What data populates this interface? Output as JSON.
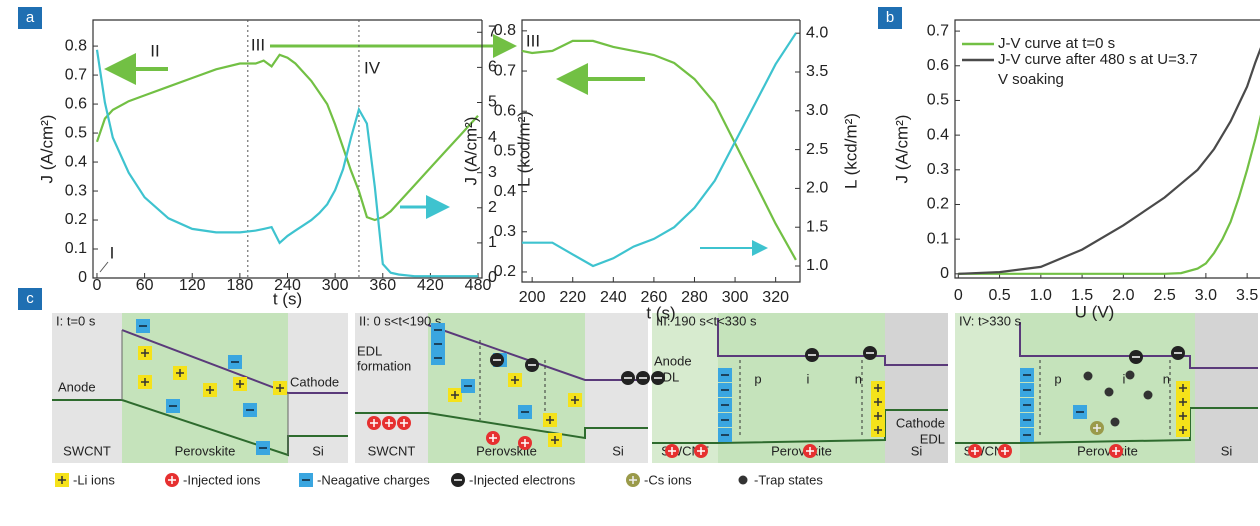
{
  "panel_labels": [
    "a",
    "b",
    "c"
  ],
  "chart_data": [
    {
      "type": "line",
      "xlabel": "t (s)",
      "ylabel": "J (A/cm²)",
      "y2label": "L (kcd/m²)",
      "x": [
        0,
        10,
        20,
        40,
        60,
        90,
        120,
        150,
        180,
        200,
        210,
        220,
        230,
        240,
        250,
        260,
        270,
        280,
        290,
        300,
        310,
        320,
        330,
        340,
        350,
        360,
        370,
        380,
        400,
        420,
        440,
        460,
        480
      ],
      "xlim": [
        -5,
        485
      ],
      "xticks": [
        0,
        60,
        120,
        180,
        240,
        300,
        360,
        420,
        480
      ],
      "ylim": [
        0,
        0.89
      ],
      "yticks": [
        0,
        0.1,
        0.2,
        0.3,
        0.4,
        0.5,
        0.6,
        0.7,
        0.8
      ],
      "y2lim": [
        0,
        7.35
      ],
      "y2ticks": [
        0,
        1,
        2,
        3,
        4,
        5,
        6,
        7
      ],
      "vlines": [
        190,
        330
      ],
      "annotations": [
        "I",
        "II",
        "III",
        "IV"
      ],
      "series": [
        {
          "color": "#72c044",
          "values": [
            0.47,
            0.55,
            0.58,
            0.61,
            0.63,
            0.66,
            0.69,
            0.72,
            0.74,
            0.74,
            0.75,
            0.73,
            0.77,
            0.76,
            0.74,
            0.71,
            0.68,
            0.64,
            0.6,
            0.53,
            0.45,
            0.37,
            0.3,
            0.21,
            0.2,
            0.21,
            0.23,
            0.26,
            0.32,
            0.38,
            0.44,
            0.5,
            0.56
          ]
        },
        {
          "color": "#3ec3cf",
          "axis": "y2",
          "values": [
            6.5,
            5.0,
            4.0,
            3.0,
            2.3,
            1.7,
            1.4,
            1.3,
            1.3,
            1.35,
            1.4,
            1.45,
            1.0,
            1.2,
            1.35,
            1.5,
            1.65,
            1.85,
            2.1,
            2.5,
            3.1,
            4.0,
            4.8,
            4.4,
            2.6,
            0.4,
            0.15,
            0.1,
            0.05,
            0.05,
            0.05,
            0.05,
            0.05
          ]
        }
      ]
    },
    {
      "type": "line",
      "xlabel": "t (s)",
      "ylabel": "J (A/cm²)",
      "y2label": "L (kcd/m²)",
      "x": [
        195,
        200,
        210,
        220,
        230,
        240,
        250,
        260,
        270,
        280,
        290,
        300,
        310,
        320,
        330
      ],
      "xlim": [
        195,
        332
      ],
      "xticks": [
        200,
        220,
        240,
        260,
        280,
        300,
        320
      ],
      "ylim": [
        0.175,
        0.827
      ],
      "yticks": [
        0.2,
        0.3,
        0.4,
        0.5,
        0.6,
        0.7,
        0.8
      ],
      "y2lim": [
        0.794,
        4.17
      ],
      "y2ticks": [
        {
          "value": 1,
          "label": "1.0"
        },
        1.5,
        {
          "value": 2,
          "label": "2.0"
        },
        2.5,
        {
          "value": 3,
          "label": "3.0"
        },
        3.5,
        {
          "value": 4,
          "label": "4.0"
        }
      ],
      "annotations": [
        "III"
      ],
      "series": [
        {
          "color": "#72c044",
          "values": [
            0.75,
            0.745,
            0.75,
            0.775,
            0.775,
            0.76,
            0.75,
            0.74,
            0.72,
            0.68,
            0.62,
            0.52,
            0.42,
            0.32,
            0.23
          ]
        },
        {
          "color": "#3ec3cf",
          "axis": "y2",
          "values": [
            1.3,
            1.3,
            1.3,
            1.15,
            1.0,
            1.1,
            1.25,
            1.35,
            1.5,
            1.75,
            2.1,
            2.6,
            3.1,
            3.6,
            4.0
          ]
        }
      ]
    },
    {
      "type": "line",
      "xlabel": "U (V)",
      "ylabel": "J (A/cm²)",
      "x": [
        0,
        0.5,
        1.0,
        1.5,
        2.0,
        2.5,
        2.7,
        2.9,
        3.0,
        3.1,
        3.2,
        3.3,
        3.4,
        3.5,
        3.6,
        3.68
      ],
      "xlim": [
        -0.04,
        3.68
      ],
      "xticks": [
        0,
        0.5,
        {
          "value": 1,
          "label": "1.0"
        },
        1.5,
        {
          "value": 2,
          "label": "2.0"
        },
        2.5,
        {
          "value": 3,
          "label": "3.0"
        },
        3.5
      ],
      "ylim": [
        -0.012,
        0.732
      ],
      "yticks": [
        0,
        0.1,
        0.2,
        0.3,
        0.4,
        0.5,
        0.6,
        0.7
      ],
      "series": [
        {
          "name": "J-V curve at t=0 s",
          "color": "#72c044",
          "values": [
            0,
            0,
            0,
            0,
            0,
            0,
            0.002,
            0.015,
            0.03,
            0.06,
            0.1,
            0.15,
            0.22,
            0.3,
            0.39,
            0.47
          ]
        },
        {
          "name": "J-V curve after 480 s at U=3.7 V soaking",
          "color": "#4a4a4a",
          "values": [
            0,
            0.005,
            0.02,
            0.07,
            0.14,
            0.22,
            0.26,
            0.3,
            0.33,
            0.36,
            0.4,
            0.44,
            0.49,
            0.54,
            0.61,
            0.66
          ]
        }
      ]
    }
  ],
  "diagram": {
    "panels": [
      {
        "title": "I: t=0 s",
        "labels": [
          "Anode",
          "Cathode"
        ],
        "regions": [
          "SWCNT",
          "Perovskite",
          "Si"
        ]
      },
      {
        "title": "II: 0 s<t<190 s",
        "labels": [
          "EDL",
          "formation"
        ],
        "regions": [
          "SWCNT",
          "Perovskite",
          "Si"
        ]
      },
      {
        "title": "III: 190 s<t<330 s",
        "labels": [
          "Anode",
          "EDL",
          "p",
          "i",
          "n",
          "Cathode",
          "EDL"
        ],
        "regions": [
          "SWCNT",
          "Perovskite",
          "Si"
        ]
      },
      {
        "title": "IV: t>330 s",
        "labels": [
          "p",
          "i",
          "n"
        ],
        "regions": [
          "SWCNT",
          "Perovskite",
          "Si"
        ]
      }
    ],
    "legend": [
      "-Li ions",
      "-Injected ions",
      "-Neagative charges",
      "-Injected electrons",
      "-Cs ions",
      "-Trap states"
    ]
  }
}
